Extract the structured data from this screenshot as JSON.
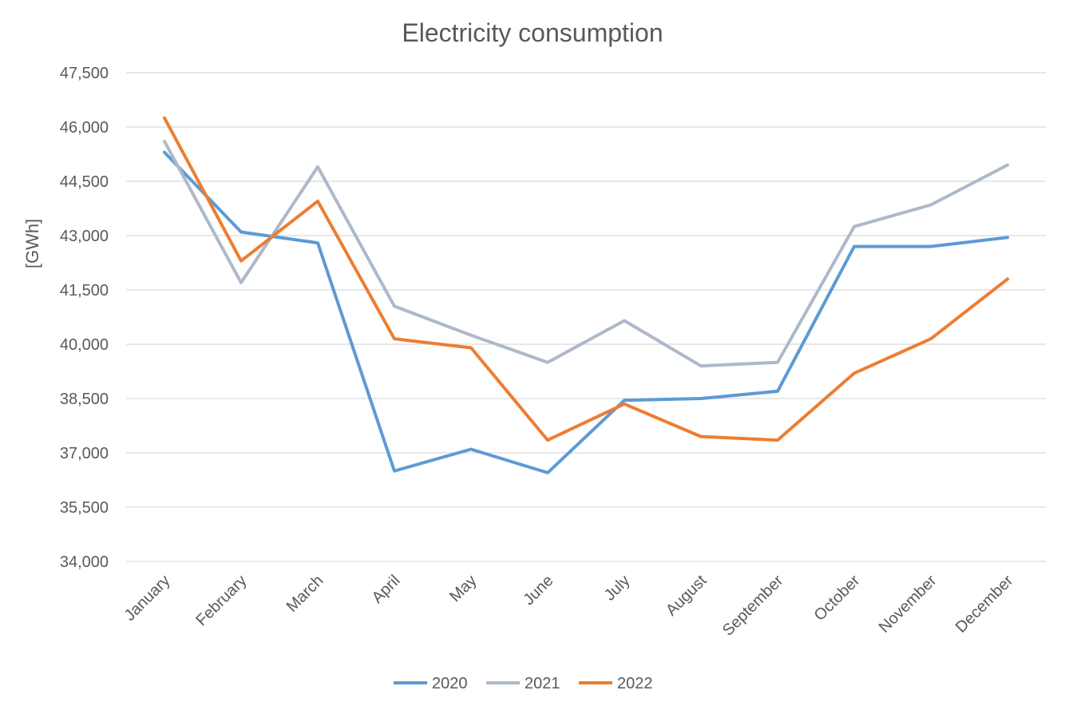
{
  "chart_data": {
    "type": "line",
    "title": "Electricity consumption",
    "xlabel": "",
    "ylabel": "[GWh]",
    "categories": [
      "January",
      "February",
      "March",
      "April",
      "May",
      "June",
      "July",
      "August",
      "September",
      "October",
      "November",
      "December"
    ],
    "ylim": [
      34000,
      47500
    ],
    "yticks": [
      34000,
      35500,
      37000,
      38500,
      40000,
      41500,
      43000,
      44500,
      46000,
      47500
    ],
    "ytick_labels": [
      "34,000",
      "35,500",
      "37,000",
      "38,500",
      "40,000",
      "41,500",
      "43,000",
      "44,500",
      "46,000",
      "47,500"
    ],
    "grid": true,
    "legend_position": "bottom",
    "series": [
      {
        "name": "2020",
        "color": "#5b9bd5",
        "values": [
          45300,
          43100,
          42800,
          36500,
          37100,
          36450,
          38450,
          38500,
          38700,
          42700,
          42700,
          42950
        ]
      },
      {
        "name": "2021",
        "color": "#adb9ca",
        "values": [
          45600,
          41700,
          44900,
          41050,
          40250,
          39500,
          40650,
          39400,
          39500,
          43250,
          43850,
          44950
        ]
      },
      {
        "name": "2022",
        "color": "#ed7d31",
        "values": [
          46250,
          42300,
          43950,
          40150,
          39900,
          37350,
          38350,
          37450,
          37350,
          39200,
          40150,
          41800
        ]
      }
    ]
  }
}
